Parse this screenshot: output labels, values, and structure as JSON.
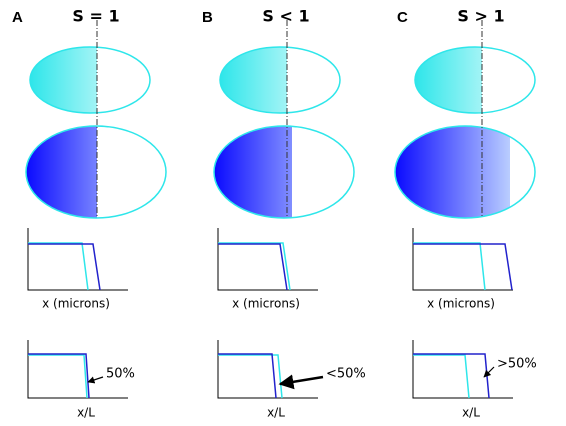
{
  "panels": [
    {
      "label": "A",
      "title": "S = 1",
      "x_label_top": "x (microns)",
      "x_label_bottom": "x/L",
      "annotation": "50%"
    },
    {
      "label": "B",
      "title": "S < 1",
      "x_label_top": "x (microns)",
      "x_label_bottom": "x/L",
      "annotation": "<50%"
    },
    {
      "label": "C",
      "title": "S > 1",
      "x_label_top": "x (microns)",
      "x_label_bottom": "x/L",
      "annotation": ">50%"
    }
  ]
}
